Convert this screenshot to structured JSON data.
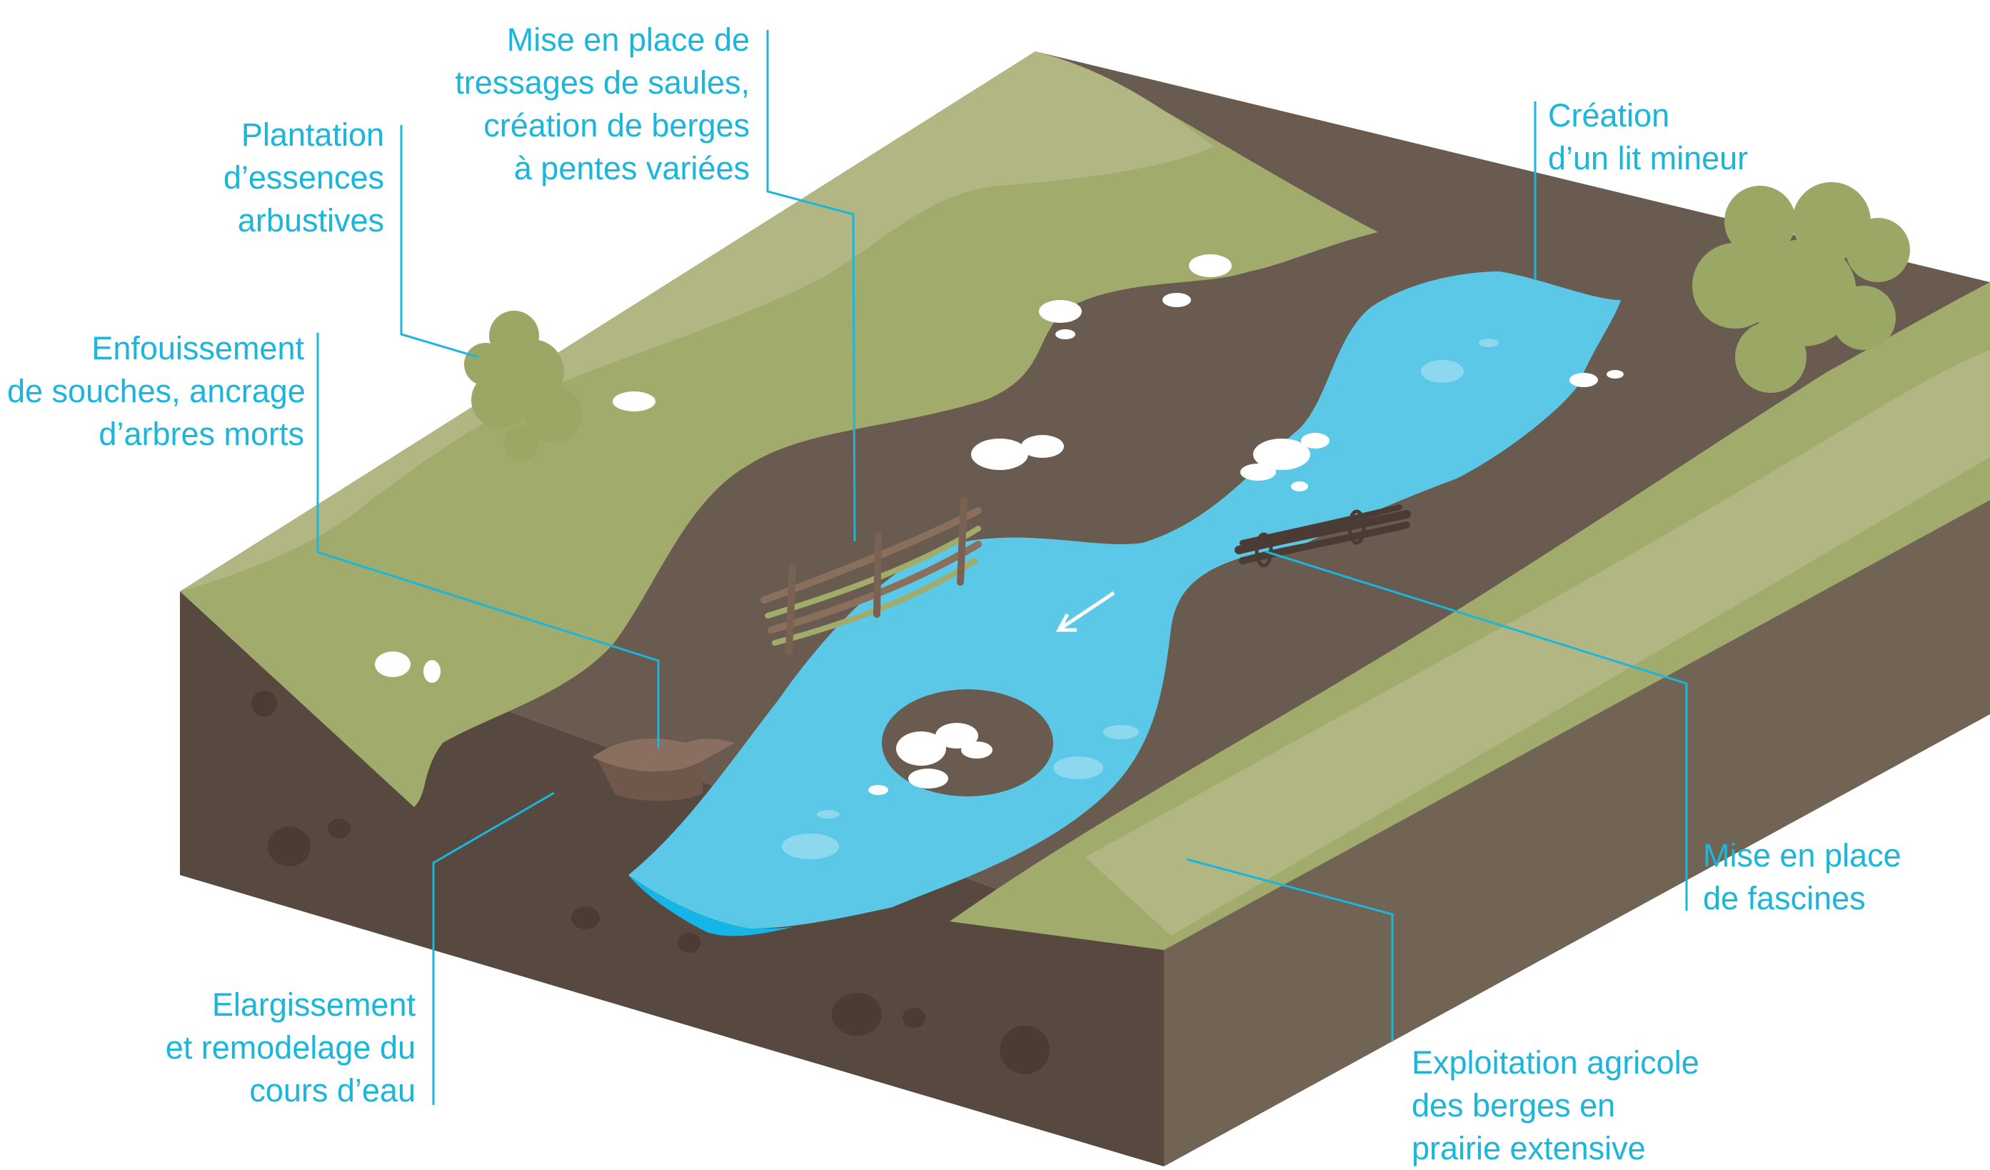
{
  "colors": {
    "accent_text": "#1ab6dc",
    "leader_line": "#1ab6dc",
    "water": "#5bc8e8",
    "water_deep": "#13b6e6",
    "grass_light": "#b1b682",
    "grass_mid": "#a0ab6c",
    "soil_top": "#695b4f",
    "soil_front": "#574840",
    "soil_side": "#716454",
    "rock": "#ffffff",
    "shrub": "#9ba865"
  },
  "icons": {
    "flow_direction": "arrow-icon",
    "shrub": "shrub-icon",
    "rock": "rock-icon",
    "willow_weave": "willow-weave-icon",
    "fascine": "fascine-icon",
    "stump": "stump-icon"
  },
  "labels": {
    "plantation": [
      "Plantation",
      "d’essences",
      "arbustives"
    ],
    "tressage": [
      "Mise en place de",
      "tressages de saules,",
      "création de berges",
      "à pentes variées"
    ],
    "lit_mineur": [
      "Création",
      "d’un lit mineur"
    ],
    "enfouissement": [
      "Enfouissement",
      "de souches, ancrage",
      "d’arbres morts"
    ],
    "fascines": [
      "Mise en place",
      "de fascines"
    ],
    "elargissement": [
      "Elargissement",
      "et remodelage du",
      "cours d’eau"
    ],
    "exploitation": [
      "Exploitation agricole",
      "des berges en",
      "prairie extensive"
    ]
  }
}
